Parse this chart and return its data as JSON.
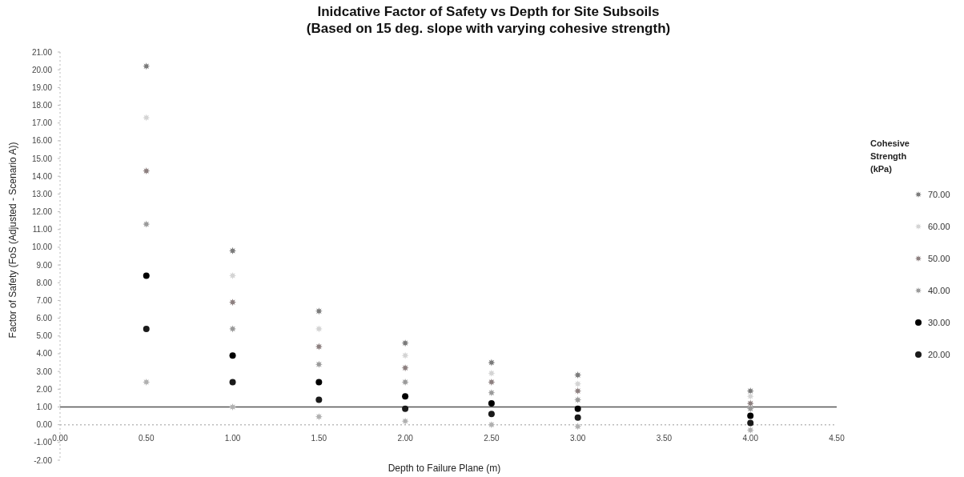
{
  "chart_data": {
    "type": "scatter",
    "title": "Inidcative Factor of Safety vs Depth for Site Subsoils\n(Based on 15 deg. slope with varying cohesive strength)",
    "xlabel": "Depth to Failure Plane (m)",
    "ylabel": "Factor of Safety (FoS (Adjusted - Scenario A))",
    "legend_title": "Cohesive Strength (kPa)",
    "legend": "right",
    "grid": false,
    "x": [
      0.5,
      1,
      1.5,
      2,
      2.5,
      3,
      4
    ],
    "xlim": [
      0,
      4.5
    ],
    "xticks": [
      {
        "value": 0,
        "label": "0.00"
      },
      {
        "value": 0.5,
        "label": "0.50"
      },
      {
        "value": 1,
        "label": "1.00"
      },
      {
        "value": 1.5,
        "label": "1.50"
      },
      {
        "value": 2,
        "label": "2.00"
      },
      {
        "value": 2.5,
        "label": "2.50"
      },
      {
        "value": 3,
        "label": "3.00"
      },
      {
        "value": 3.5,
        "label": "3.50"
      },
      {
        "value": 4,
        "label": "4.00"
      },
      {
        "value": 4.5,
        "label": "4.50"
      }
    ],
    "ylim": [
      -2,
      21
    ],
    "yticks": [
      {
        "value": -2,
        "label": "-2.00"
      },
      {
        "value": -1,
        "label": "-1.00"
      },
      {
        "value": 0,
        "label": "0.00"
      },
      {
        "value": 1,
        "label": "1.00"
      },
      {
        "value": 2,
        "label": "2.00"
      },
      {
        "value": 3,
        "label": "3.00"
      },
      {
        "value": 4,
        "label": "4.00"
      },
      {
        "value": 5,
        "label": "5.00"
      },
      {
        "value": 6,
        "label": "6.00"
      },
      {
        "value": 7,
        "label": "7.00"
      },
      {
        "value": 8,
        "label": "8.00"
      },
      {
        "value": 9,
        "label": "9.00"
      },
      {
        "value": 10,
        "label": "10.00"
      },
      {
        "value": 11,
        "label": "11.00"
      },
      {
        "value": 12,
        "label": "12.00"
      },
      {
        "value": 13,
        "label": "13.00"
      },
      {
        "value": 14,
        "label": "14.00"
      },
      {
        "value": 15,
        "label": "15.00"
      },
      {
        "value": 16,
        "label": "16.00"
      },
      {
        "value": 17,
        "label": "17.00"
      },
      {
        "value": 18,
        "label": "18.00"
      },
      {
        "value": 19,
        "label": "19.00"
      },
      {
        "value": 20,
        "label": "20.00"
      },
      {
        "value": 21,
        "label": "21.00"
      }
    ],
    "ref_lines": [
      {
        "axis": "y",
        "value": 1,
        "color": "#555555",
        "line_style": "solid"
      },
      {
        "axis": "y",
        "value": 0,
        "color": "#bbbbbb",
        "line_style": "dotted"
      }
    ],
    "series": [
      {
        "name": "70.00",
        "color": "#7a7a7a",
        "marker": "star",
        "values": [
          20.2,
          9.8,
          6.4,
          4.6,
          3.5,
          2.8,
          1.9
        ]
      },
      {
        "name": "60.00",
        "color": "#d4d4d4",
        "marker": "star",
        "values": [
          17.3,
          8.4,
          5.4,
          3.9,
          2.9,
          2.3,
          1.6
        ]
      },
      {
        "name": "50.00",
        "color": "#8c7f7f",
        "marker": "star",
        "values": [
          14.3,
          6.9,
          4.4,
          3.2,
          2.4,
          1.9,
          1.2
        ]
      },
      {
        "name": "40.00",
        "color": "#9a9a9a",
        "marker": "star",
        "values": [
          11.3,
          5.4,
          3.4,
          2.4,
          1.8,
          1.4,
          0.9
        ]
      },
      {
        "name": "30.00",
        "color": "#000000",
        "marker": "circle",
        "values": [
          8.4,
          3.9,
          2.4,
          1.6,
          1.2,
          0.9,
          0.5
        ]
      },
      {
        "name": "20.00",
        "color": "#1a1a1a",
        "marker": "circle",
        "values": [
          5.4,
          2.4,
          1.4,
          0.9,
          0.6,
          0.4,
          0.1
        ]
      },
      {
        "color": "#b0b0b0",
        "marker": "star",
        "values": [
          2.4,
          1.0,
          0.45,
          0.2,
          0.0,
          -0.1,
          -0.3
        ]
      }
    ]
  }
}
